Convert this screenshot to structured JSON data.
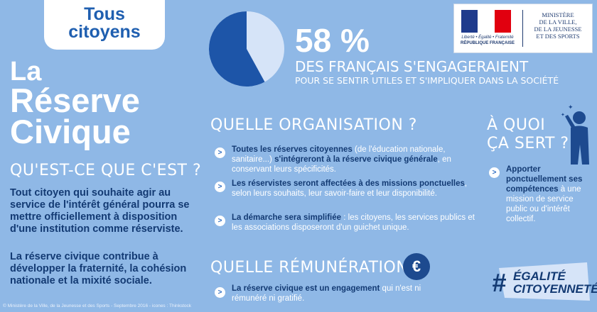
{
  "badge": {
    "line1": "Tous",
    "line2": "citoyens"
  },
  "title": {
    "line1": "La",
    "line2": "Réserve",
    "line3": "Civique"
  },
  "what": {
    "heading": "QU'EST-CE QUE C'EST ?",
    "paragraph1": "Tout citoyen qui souhaite agir au service de l'intérêt général pourra se mettre officiellement à disposition d'une institution comme réserviste.",
    "paragraph2": "La réserve civique contribue à développer la fraternité, la cohésion nationale et la mixité sociale."
  },
  "stat": {
    "percent": "58 %",
    "percent_value": 58,
    "line1": "DES FRANÇAIS S'ENGAGERAIENT",
    "line2": "POUR SE SENTIR UTILES ET S'IMPLIQUER DANS LA SOCIÉTÉ"
  },
  "logo": {
    "republic_caption_1": "Liberté • Égalité • Fraternité",
    "republic_caption_2": "RÉPUBLIQUE FRANÇAISE",
    "ministry_1": "MINISTÈRE",
    "ministry_2": "DE LA VILLE,",
    "ministry_3": "DE LA JEUNESSE",
    "ministry_4": "ET DES SPORTS",
    "flag_colors": [
      "#1f3b8c",
      "#ffffff",
      "#e1000f"
    ]
  },
  "organisation": {
    "heading": "QUELLE ORGANISATION ?",
    "items": [
      {
        "bold1": "Toutes les réserves citoyennes",
        "normal1": " (de l'éducation nationale, sanitaire...) ",
        "bold2": "s'intégreront à la réserve civique générale",
        "normal2": ", en conservant leurs spécificités."
      },
      {
        "bold1": "Les réservistes seront affectées à des missions ponctuelles",
        "normal1": ", selon leurs souhaits, leur savoir-faire et leur disponibilité.",
        "bold2": "",
        "normal2": ""
      },
      {
        "bold1": "La démarche sera simplifiée",
        "normal1": " : les citoyens, les services publics et les associations disposeront d'un guichet unique.",
        "bold2": "",
        "normal2": ""
      }
    ]
  },
  "remuneration": {
    "heading": "QUELLE RÉMUNÉRATION ?",
    "euro_symbol": "€",
    "item_bold": "La réserve civique est un engagement",
    "item_normal": " qui n'est ni rémunéré ni gratifié."
  },
  "purpose": {
    "heading_1": "À QUOI",
    "heading_2": "ÇA SERT ?",
    "item_bold": "Apporter ponctuellement ses compétences",
    "item_normal": " à une mission de service public ou d'intérêt collectif."
  },
  "hashtag": {
    "symbol": "#",
    "line1": "ÉGALITÉ",
    "line2": "CITOYENNETÉ"
  },
  "footer": "© Ministère de la Ville, de la Jeunesse et des Sports - Septembre 2016 - icones : Thinkstock",
  "colors": {
    "background": "#8fb8e6",
    "accent_dark": "#133a73",
    "pie_dark": "#1d55a8",
    "pie_light": "#d6e4f8"
  }
}
